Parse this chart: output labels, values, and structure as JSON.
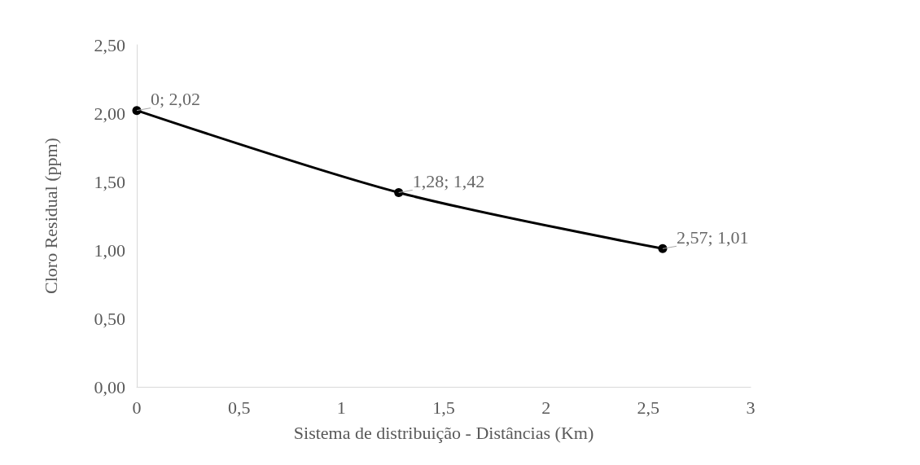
{
  "chart_data": {
    "type": "line",
    "xlabel": "Sistema de distribuição - Distâncias (Km)",
    "ylabel": "Cloro Residual (ppm)",
    "x": [
      0,
      1.28,
      2.57
    ],
    "series": [
      {
        "color": "#000000",
        "values": [
          2.02,
          1.42,
          1.01
        ]
      }
    ],
    "xlim": [
      0,
      3
    ],
    "xticks": [
      0,
      {
        "value": 0.5,
        "label": "0,5"
      },
      1,
      {
        "value": 1.5,
        "label": "1,5"
      },
      2,
      {
        "value": 2.5,
        "label": "2,5"
      },
      3
    ],
    "ylim": [
      0,
      2.5
    ],
    "yticks": [
      {
        "value": 0,
        "label": "0,00"
      },
      {
        "value": 0.5,
        "label": "0,50"
      },
      {
        "value": 1,
        "label": "1,00"
      },
      {
        "value": 1.5,
        "label": "1,50"
      },
      {
        "value": 2,
        "label": "2,00"
      },
      {
        "value": 2.5,
        "label": "2,50"
      }
    ],
    "annotations": [
      {
        "text": "0; 2,02",
        "x": 0,
        "y": 2.02
      },
      {
        "text": "1,28; 1,42",
        "x": 1.28,
        "y": 1.42
      },
      {
        "text": "2,57; 1,01",
        "x": 2.57,
        "y": 1.01
      }
    ],
    "marker": "circle",
    "line_style": "solid"
  }
}
